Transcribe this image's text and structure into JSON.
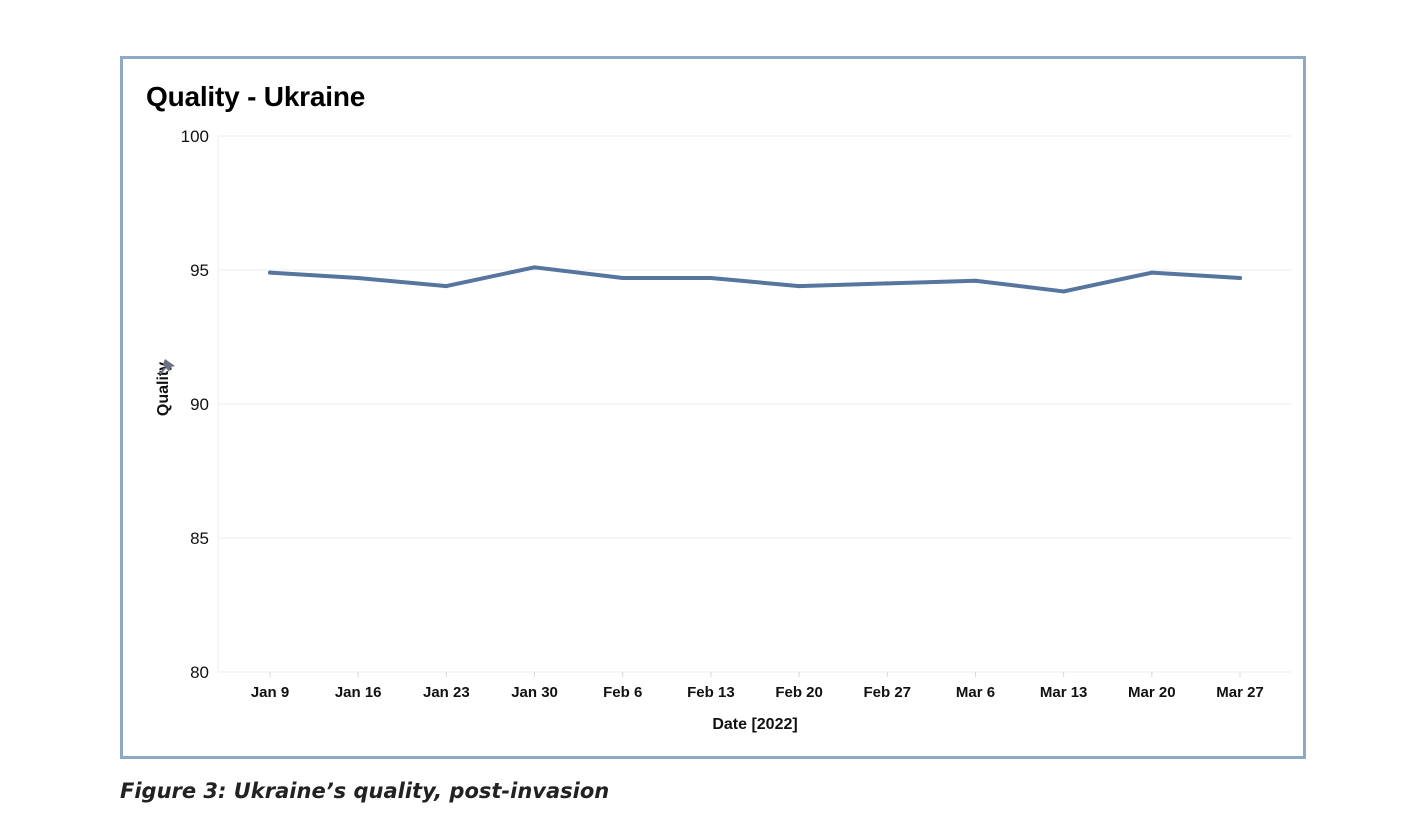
{
  "caption": "Figure 3: Ukraine’s quality, post-invasion",
  "chart_data": {
    "type": "line",
    "title": "Quality - Ukraine",
    "xlabel": "Date [2022]",
    "ylabel": "Quality",
    "ylim": [
      80,
      100
    ],
    "yticks": [
      80,
      85,
      90,
      95,
      100
    ],
    "grid": true,
    "categories": [
      "Jan 9",
      "Jan 16",
      "Jan 23",
      "Jan 30",
      "Feb 6",
      "Feb 13",
      "Feb 20",
      "Feb 27",
      "Mar 6",
      "Mar 13",
      "Mar 20",
      "Mar 27"
    ],
    "series": [
      {
        "name": "Quality",
        "color": "#56759f",
        "values": [
          94.9,
          94.7,
          94.4,
          95.1,
          94.7,
          94.7,
          94.4,
          94.5,
          94.6,
          94.2,
          94.9,
          94.7
        ]
      }
    ],
    "colors": {
      "gridline": "#eeeeee",
      "frame": "#8fa9c4",
      "pin_icon": "#6c7280"
    }
  }
}
